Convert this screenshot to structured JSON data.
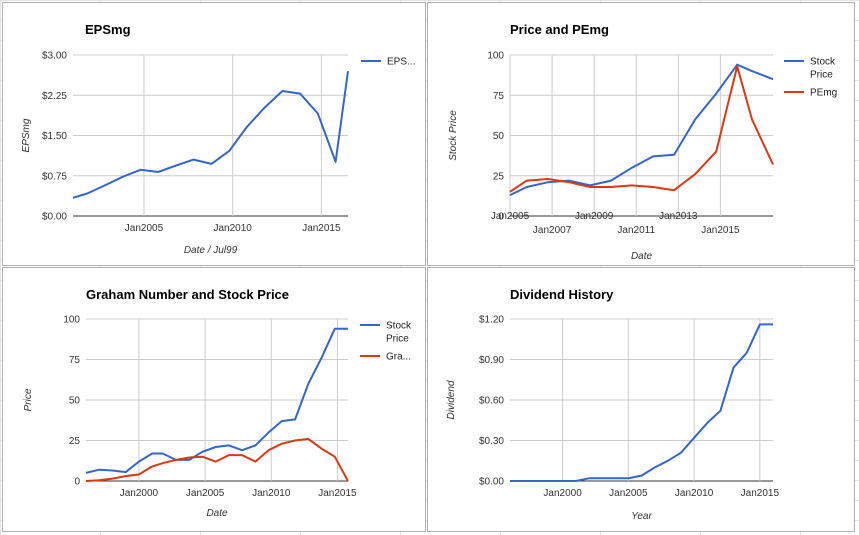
{
  "colors": {
    "blue": "#3366cc",
    "red": "#dc3912",
    "grid": "#cccccc"
  },
  "chart_data": [
    {
      "type": "line",
      "title": "EPSmg",
      "xlabel": "Date / Jul99",
      "ylabel": "EPSmg",
      "ylim": [
        0,
        3
      ],
      "xlim": [
        2001.0,
        2016.5
      ],
      "yticks": [
        0,
        0.75,
        1.5,
        2.25,
        3.0
      ],
      "ytick_labels": [
        "$0.00",
        "$0.75",
        "$1.50",
        "$2.25",
        "$3.00"
      ],
      "xticks": [
        2005,
        2010,
        2015
      ],
      "xtick_labels": [
        "Jan2005",
        "Jan2010",
        "Jan2015"
      ],
      "legend_position": "right",
      "grid": true,
      "series": [
        {
          "name": "EPS...",
          "color": "#3366cc",
          "x": [
            2001.0,
            2001.8,
            2002.8,
            2003.8,
            2004.8,
            2005.8,
            2006.8,
            2007.8,
            2008.8,
            2009.8,
            2010.8,
            2011.8,
            2012.8,
            2013.8,
            2014.8,
            2015.8,
            2016.5
          ],
          "y": [
            0.34,
            0.42,
            0.57,
            0.73,
            0.86,
            0.82,
            0.94,
            1.05,
            0.97,
            1.21,
            1.66,
            2.02,
            2.33,
            2.28,
            1.91,
            1.01,
            2.7
          ]
        }
      ]
    },
    {
      "type": "line",
      "title": "Price and PEmg",
      "xlabel": "Date",
      "ylabel": "Stock Price",
      "ylim": [
        0,
        100
      ],
      "xlim": [
        2005.0,
        2017.5
      ],
      "yticks": [
        0,
        25,
        50,
        75,
        100
      ],
      "ytick_labels": [
        "0",
        "25",
        "50",
        "75",
        "100"
      ],
      "xticks": [
        2005,
        2007,
        2009,
        2011,
        2013,
        2015
      ],
      "xtick_labels": [
        "Jan2005",
        "Jan2007",
        "Jan2009",
        "Jan2011",
        "Jan2013",
        "Jan2015"
      ],
      "legend_position": "right",
      "grid": true,
      "series": [
        {
          "name": "Stock Price",
          "color": "#3366cc",
          "x": [
            2005.0,
            2005.8,
            2006.8,
            2007.8,
            2008.8,
            2009.8,
            2010.8,
            2011.8,
            2012.8,
            2013.8,
            2014.8,
            2015.8,
            2016.5,
            2017.5
          ],
          "y": [
            13,
            18,
            21,
            22,
            19,
            22,
            30,
            37,
            38,
            60,
            76,
            94,
            90,
            85
          ]
        },
        {
          "name": "PEmg",
          "color": "#dc3912",
          "x": [
            2005.0,
            2005.8,
            2006.8,
            2007.8,
            2008.8,
            2009.8,
            2010.8,
            2011.8,
            2012.8,
            2013.8,
            2014.8,
            2015.8,
            2016.5,
            2017.5
          ],
          "y": [
            15,
            22,
            23,
            21,
            18,
            18,
            19,
            18,
            16,
            26,
            40,
            93,
            60,
            32
          ]
        }
      ]
    },
    {
      "type": "line",
      "title": "Graham Number and Stock Price",
      "xlabel": "Date",
      "ylabel": "Price",
      "ylim": [
        0,
        100
      ],
      "xlim": [
        1996.0,
        2015.8
      ],
      "yticks": [
        0,
        25,
        50,
        75,
        100
      ],
      "ytick_labels": [
        "0",
        "25",
        "50",
        "75",
        "100"
      ],
      "xticks": [
        2000,
        2005,
        2010,
        2015
      ],
      "xtick_labels": [
        "Jan2000",
        "Jan2005",
        "Jan2010",
        "Jan2015"
      ],
      "legend_position": "right",
      "grid": true,
      "series": [
        {
          "name": "Stock Price",
          "color": "#3366cc",
          "x": [
            1996.0,
            1997.0,
            1998.0,
            1999.0,
            2000.0,
            2001.0,
            2001.8,
            2002.8,
            2003.8,
            2004.8,
            2005.8,
            2006.8,
            2007.8,
            2008.8,
            2009.8,
            2010.8,
            2011.8,
            2012.8,
            2013.8,
            2014.8,
            2015.8
          ],
          "y": [
            5,
            7,
            6.5,
            5.5,
            12,
            17,
            17,
            13,
            13,
            18,
            21,
            22,
            19,
            22,
            30,
            37,
            38,
            60,
            76,
            94,
            94
          ]
        },
        {
          "name": "Gra...",
          "color": "#dc3912",
          "x": [
            1996.0,
            1997.0,
            1998.0,
            1999.0,
            2000.0,
            2001.0,
            2001.8,
            2002.8,
            2003.8,
            2004.8,
            2005.8,
            2006.8,
            2007.8,
            2008.8,
            2009.8,
            2010.8,
            2011.8,
            2012.8,
            2013.8,
            2014.8,
            2015.8
          ],
          "y": [
            0,
            0.5,
            1.5,
            3,
            4,
            9,
            11,
            13,
            14.5,
            15,
            12,
            16,
            16,
            12,
            19,
            23,
            25,
            26,
            20,
            15,
            0
          ]
        }
      ]
    },
    {
      "type": "line",
      "title": "Dividend History",
      "xlabel": "Year",
      "ylabel": "Dividend",
      "ylim": [
        0,
        1.2
      ],
      "xlim": [
        1996.0,
        2016.0
      ],
      "yticks": [
        0,
        0.3,
        0.6,
        0.9,
        1.2
      ],
      "ytick_labels": [
        "$0.00",
        "$0.30",
        "$0.60",
        "$0.90",
        "$1.20"
      ],
      "xticks": [
        2000,
        2005,
        2010,
        2015
      ],
      "xtick_labels": [
        "Jan2000",
        "Jan2005",
        "Jan2010",
        "Jan2015"
      ],
      "legend_position": "none",
      "grid": true,
      "series": [
        {
          "name": "",
          "color": "#3366cc",
          "x": [
            1996,
            1997,
            1998,
            1999,
            2000,
            2001,
            2002,
            2003,
            2004,
            2005,
            2006,
            2007,
            2008,
            2009,
            2010,
            2011,
            2012,
            2013,
            2014,
            2015,
            2016
          ],
          "y": [
            0,
            0,
            0,
            0,
            0,
            0,
            0.02,
            0.02,
            0.02,
            0.02,
            0.04,
            0.1,
            0.15,
            0.21,
            0.32,
            0.43,
            0.52,
            0.84,
            0.95,
            1.16,
            1.16
          ]
        }
      ]
    }
  ]
}
